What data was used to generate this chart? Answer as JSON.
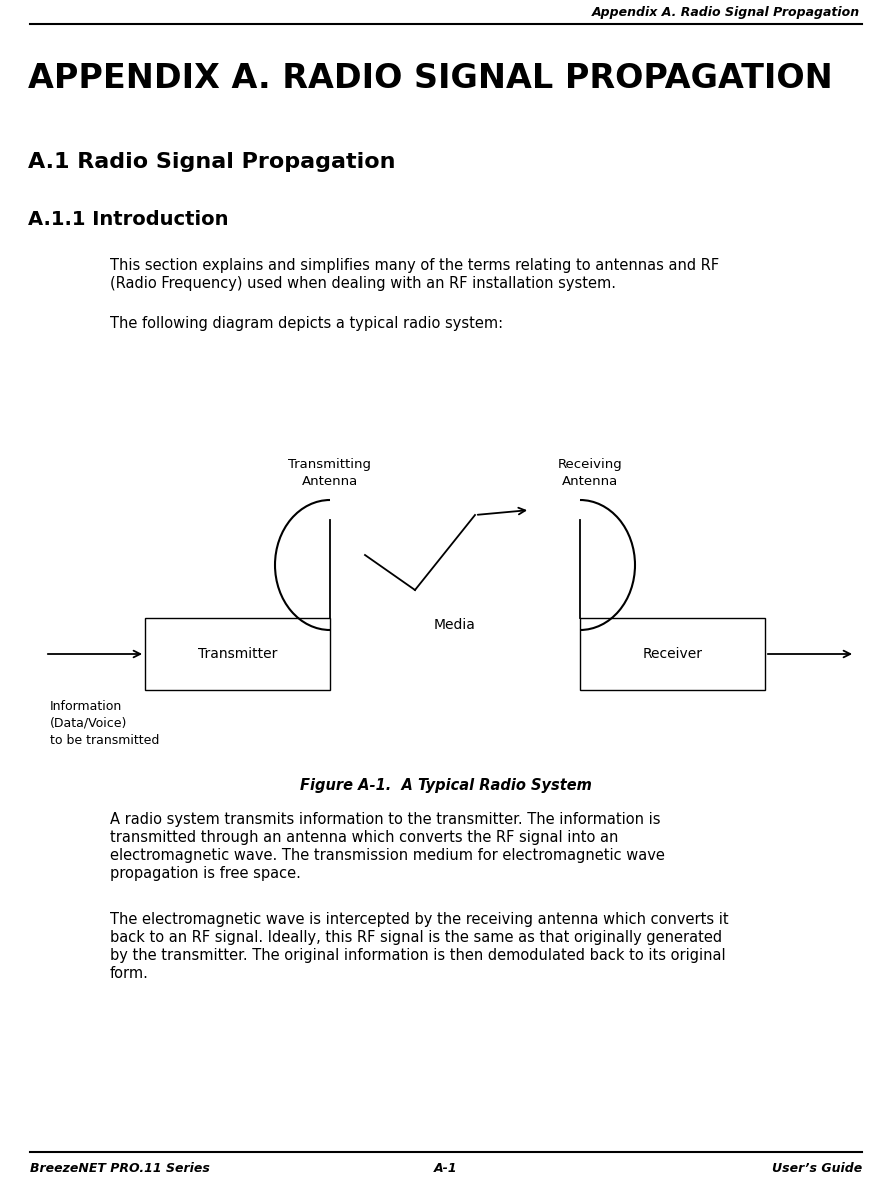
{
  "header_right": "Appendix A. Radio Signal Propagation",
  "main_title": "APPENDIX A. RADIO SIGNAL PROPAGATION",
  "section_title": "A.1 Radio Signal Propagation",
  "subsection_title": "A.1.1 Introduction",
  "para1_line1": "This section explains and simplifies many of the terms relating to antennas and RF",
  "para1_line2": "(Radio Frequency) used when dealing with an RF installation system.",
  "para2": "The following diagram depicts a typical radio system:",
  "figure_caption": "Figure A-1.  A Typical Radio System",
  "para3_line1": "A radio system transmits information to the transmitter. The information is",
  "para3_line2": "transmitted through an antenna which converts the RF signal into an",
  "para3_line3": "electromagnetic wave. The transmission medium for electromagnetic wave",
  "para3_line4": "propagation is free space.",
  "para4_line1": "The electromagnetic wave is intercepted by the receiving antenna which converts it",
  "para4_line2": "back to an RF signal. Ideally, this RF signal is the same as that originally generated",
  "para4_line3": "by the transmitter. The original information is then demodulated back to its original",
  "para4_line4": "form.",
  "footer_left": "BreezeNET PRO.11 Series",
  "footer_center": "A-1",
  "footer_right": "User’s Guide",
  "bg_color": "#ffffff",
  "text_color": "#000000",
  "tx_label": "Transmitting\nAntenna",
  "rx_label": "Receiving\nAntenna",
  "media_label": "Media",
  "transmitter_label": "Transmitter",
  "receiver_label": "Receiver",
  "info_label": "Information\n(Data/Voice)\nto be transmitted"
}
